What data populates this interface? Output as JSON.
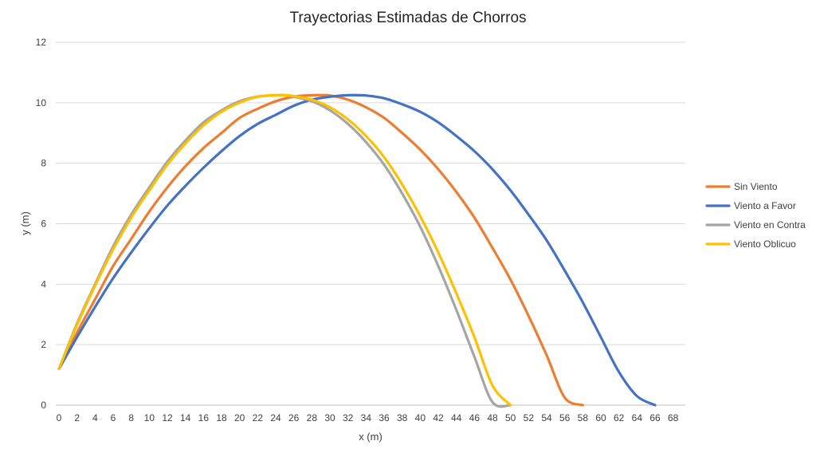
{
  "chart_data": {
    "type": "line",
    "title": "Trayectorias Estimadas de Chorros",
    "xlabel": "x (m)",
    "ylabel": "y (m)",
    "xlim": [
      0,
      69
    ],
    "ylim": [
      0,
      12
    ],
    "x_ticks": [
      0,
      2,
      4,
      6,
      8,
      10,
      12,
      14,
      16,
      18,
      20,
      22,
      24,
      26,
      28,
      30,
      32,
      34,
      36,
      38,
      40,
      42,
      44,
      46,
      48,
      50,
      52,
      54,
      56,
      58,
      60,
      62,
      64,
      66,
      68
    ],
    "y_ticks": [
      0,
      2,
      4,
      6,
      8,
      10,
      12
    ],
    "grid": "horizontal",
    "legend_position": "right",
    "series": [
      {
        "name": "Sin Viento",
        "color": "#ED7D31",
        "x": [
          0,
          2,
          4,
          6,
          8,
          10,
          12,
          14,
          16,
          18,
          20,
          22,
          24,
          26,
          28,
          29,
          30,
          32,
          34,
          36,
          38,
          40,
          42,
          44,
          46,
          48,
          50,
          52,
          54,
          56,
          58,
          60
        ],
        "y": [
          1.2,
          2.4,
          3.5,
          4.6,
          5.5,
          6.4,
          7.2,
          7.9,
          8.5,
          9.0,
          9.5,
          9.8,
          10.05,
          10.2,
          10.25,
          10.25,
          10.24,
          10.1,
          9.85,
          9.5,
          9.0,
          8.45,
          7.8,
          7.05,
          6.2,
          5.2,
          4.15,
          2.95,
          1.65,
          0.25,
          0,
          0
        ]
      },
      {
        "name": "Viento a Favor",
        "color": "#4472C4",
        "x": [
          0,
          2,
          4,
          6,
          8,
          10,
          12,
          14,
          16,
          18,
          20,
          22,
          24,
          26,
          28,
          30,
          32,
          33,
          34,
          36,
          38,
          40,
          42,
          44,
          46,
          48,
          50,
          52,
          54,
          56,
          58,
          60,
          62,
          64,
          66,
          68,
          69
        ],
        "y": [
          1.2,
          2.25,
          3.25,
          4.2,
          5.05,
          5.85,
          6.6,
          7.25,
          7.85,
          8.4,
          8.9,
          9.3,
          9.6,
          9.9,
          10.1,
          10.2,
          10.25,
          10.25,
          10.24,
          10.15,
          9.95,
          9.7,
          9.35,
          8.9,
          8.4,
          7.8,
          7.1,
          6.3,
          5.45,
          4.45,
          3.4,
          2.25,
          1.1,
          0.3,
          0,
          0,
          0
        ]
      },
      {
        "name": "Viento en Contra",
        "color": "#A5A5A5",
        "x": [
          0,
          2,
          4,
          6,
          8,
          10,
          12,
          14,
          16,
          18,
          20,
          22,
          24,
          25,
          26,
          28,
          30,
          32,
          34,
          36,
          38,
          40,
          42,
          44,
          46,
          48,
          50,
          51
        ],
        "y": [
          1.2,
          2.7,
          4.0,
          5.25,
          6.3,
          7.2,
          8.05,
          8.75,
          9.35,
          9.75,
          10.05,
          10.2,
          10.25,
          10.25,
          10.2,
          10.05,
          9.75,
          9.3,
          8.7,
          7.95,
          7.0,
          5.9,
          4.6,
          3.15,
          1.6,
          0.1,
          0,
          0
        ]
      },
      {
        "name": "Viento Oblicuo",
        "color": "#FFC000",
        "x": [
          0,
          2,
          4,
          6,
          8,
          10,
          12,
          14,
          16,
          18,
          20,
          22,
          24,
          25,
          26,
          28,
          30,
          32,
          34,
          36,
          38,
          40,
          42,
          44,
          46,
          48,
          50,
          52
        ],
        "y": [
          1.2,
          2.65,
          3.95,
          5.15,
          6.2,
          7.1,
          7.95,
          8.65,
          9.25,
          9.7,
          10.0,
          10.2,
          10.25,
          10.25,
          10.22,
          10.1,
          9.85,
          9.45,
          8.9,
          8.2,
          7.3,
          6.25,
          5.05,
          3.7,
          2.25,
          0.65,
          0,
          0
        ]
      }
    ]
  }
}
